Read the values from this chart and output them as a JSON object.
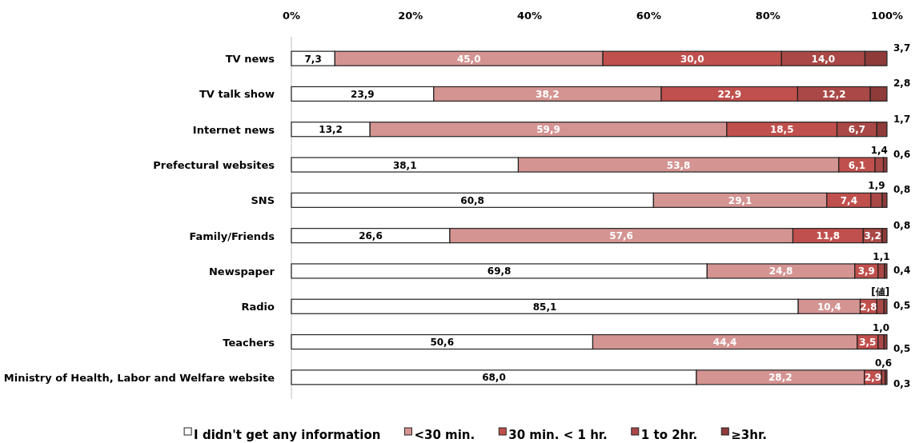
{
  "chart_data": {
    "type": "bar",
    "orientation": "horizontal",
    "stacked": true,
    "legend": "bottom",
    "categories": [
      "TV news",
      "TV talk show",
      "Internet news",
      "Prefectural websites",
      "SNS",
      "Family/Friends",
      "Newspaper",
      "Radio",
      "Teachers",
      "Ministry of Health, Labor and Welfare website"
    ],
    "xlim": [
      0,
      100
    ],
    "xticks": [
      {
        "value": 0,
        "label": "0%"
      },
      {
        "value": 20,
        "label": "20%"
      },
      {
        "value": 40,
        "label": "40%"
      },
      {
        "value": 60,
        "label": "60%"
      },
      {
        "value": 80,
        "label": "80%"
      },
      {
        "value": 100,
        "label": "100%"
      }
    ],
    "series": [
      {
        "name": "I didn't get any information",
        "color": "#ffffff",
        "values": [
          7.3,
          23.9,
          13.2,
          38.1,
          60.8,
          26.6,
          69.8,
          85.1,
          50.6,
          68.0
        ],
        "value_labels": [
          "7,3",
          "23,9",
          "13,2",
          "38,1",
          "60,8",
          "26,6",
          "69,8",
          "85,1",
          "50,6",
          "68,0"
        ]
      },
      {
        "name": "<30 min.",
        "color": "#d49492",
        "values": [
          45.0,
          38.2,
          59.9,
          53.8,
          29.1,
          57.6,
          24.8,
          10.4,
          44.4,
          28.2
        ],
        "value_labels": [
          "45,0",
          "38,2",
          "59,9",
          "53,8",
          "29,1",
          "57,6",
          "24,8",
          "10,4",
          "44,4",
          "28,2"
        ]
      },
      {
        "name": "30 min. < 1 hr.",
        "color": "#c0504d",
        "values": [
          30.0,
          22.9,
          18.5,
          6.1,
          7.4,
          11.8,
          3.9,
          2.8,
          3.5,
          2.9
        ],
        "value_labels": [
          "30,0",
          "22,9",
          "18,5",
          "6,1",
          "7,4",
          "11,8",
          "3,9",
          "2,8",
          "3,5",
          "2,9"
        ]
      },
      {
        "name": "1 to 2hr.",
        "color": "#a94846",
        "values": [
          14.0,
          12.2,
          6.7,
          1.4,
          1.9,
          3.2,
          1.1,
          1.2,
          1.0,
          0.6
        ],
        "value_labels": [
          "14,0",
          "12,2",
          "6,7",
          "1,4",
          "1,9",
          "3,2",
          "1,1",
          "[値]",
          "1,0",
          "0,6"
        ]
      },
      {
        "name": "≥3hr.",
        "color": "#8e3b3a",
        "values": [
          3.7,
          2.8,
          1.7,
          0.6,
          0.8,
          0.8,
          0.4,
          0.5,
          0.5,
          0.3
        ],
        "value_labels": [
          "3,7",
          "2,8",
          "1,7",
          "0,6",
          "0,8",
          "0,8",
          "0,4",
          "0,5",
          "0,5",
          "0,3"
        ]
      }
    ]
  }
}
